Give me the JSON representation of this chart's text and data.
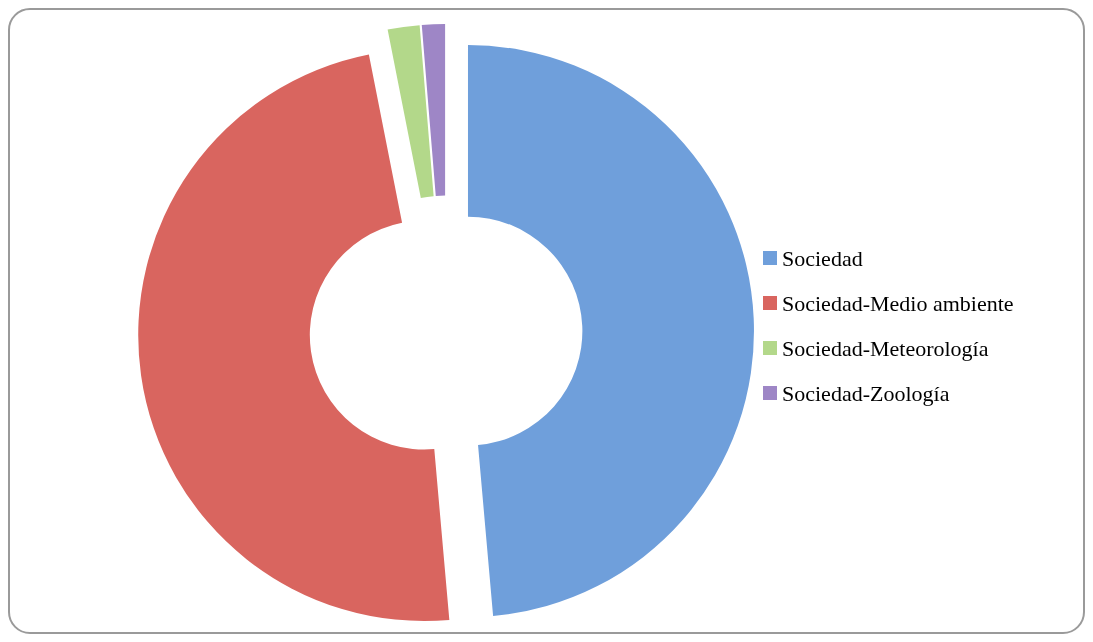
{
  "chart_data": {
    "type": "donut",
    "categories": [
      "Sociedad",
      "Sociedad-Medio ambiente",
      "Sociedad-Meteorología",
      "Sociedad-Zoología"
    ],
    "values": [
      48.6,
      48.3,
      1.8,
      1.3
    ],
    "colors": [
      "#6f9fdb",
      "#d9655f",
      "#b3d88a",
      "#9e86c6"
    ],
    "legend": "right"
  }
}
